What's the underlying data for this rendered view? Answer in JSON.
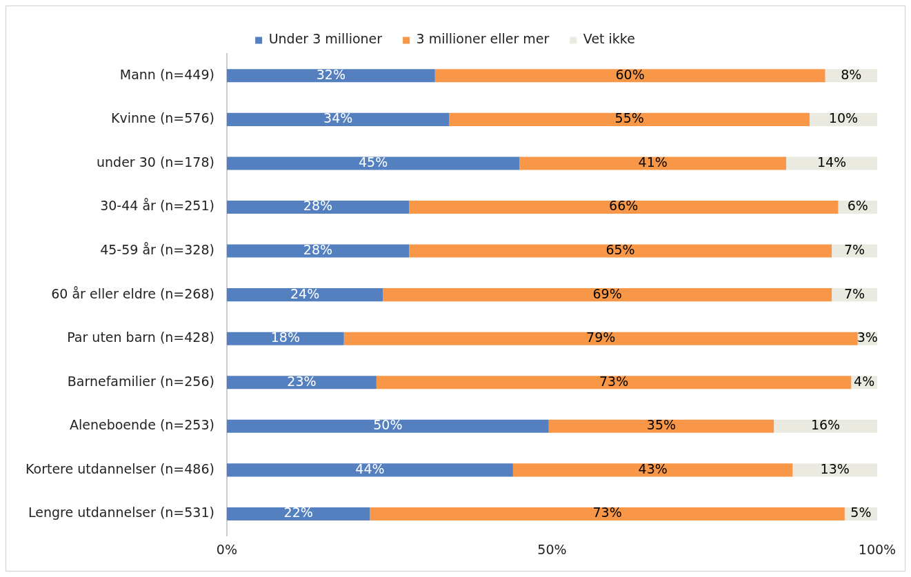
{
  "chart_data": {
    "type": "bar",
    "orientation": "horizontal",
    "stacked": true,
    "categories": [
      "Mann (n=449)",
      "Kvinne (n=576)",
      "under 30 (n=178)",
      "30-44 år (n=251)",
      "45-59 år (n=328)",
      "60 år eller eldre (n=268)",
      "Par uten barn (n=428)",
      "Barnefamilier (n=256)",
      "Aleneboende (n=253)",
      "Kortere utdannelser (n=486)",
      "Lengre utdannelser (n=531)"
    ],
    "series": [
      {
        "name": "Under 3 millioner",
        "color": "#5580c0",
        "values": [
          32,
          34.2,
          45,
          28,
          28,
          24,
          18,
          23,
          49.5,
          44,
          22
        ],
        "value_labels": [
          "32%",
          "34%",
          "45%",
          "28%",
          "28%",
          "24%",
          "18%",
          "23%",
          "50%",
          "44%",
          "22%"
        ]
      },
      {
        "name": "3 millioner eller mer",
        "color": "#f79747",
        "values": [
          60,
          55.4,
          41,
          66,
          65,
          69,
          79,
          73,
          34.6,
          43,
          73
        ],
        "value_labels": [
          "60%",
          "55%",
          "41%",
          "66%",
          "65%",
          "69%",
          "79%",
          "73%",
          "35%",
          "43%",
          "73%"
        ]
      },
      {
        "name": "Vet ikke",
        "color": "#ebeae0",
        "values": [
          8,
          10.4,
          14,
          6,
          7,
          7,
          3,
          4,
          15.9,
          13,
          5
        ],
        "value_labels": [
          "8%",
          "10%",
          "14%",
          "6%",
          "7%",
          "7%",
          "3%",
          "4%",
          "16%",
          "13%",
          "5%"
        ]
      }
    ],
    "xlim": [
      0,
      100
    ],
    "xticks": [
      {
        "value": 0,
        "label": "0%"
      },
      {
        "value": 50,
        "label": "50%"
      },
      {
        "value": 100,
        "label": "100%"
      }
    ],
    "grid": false,
    "legend": "top"
  }
}
